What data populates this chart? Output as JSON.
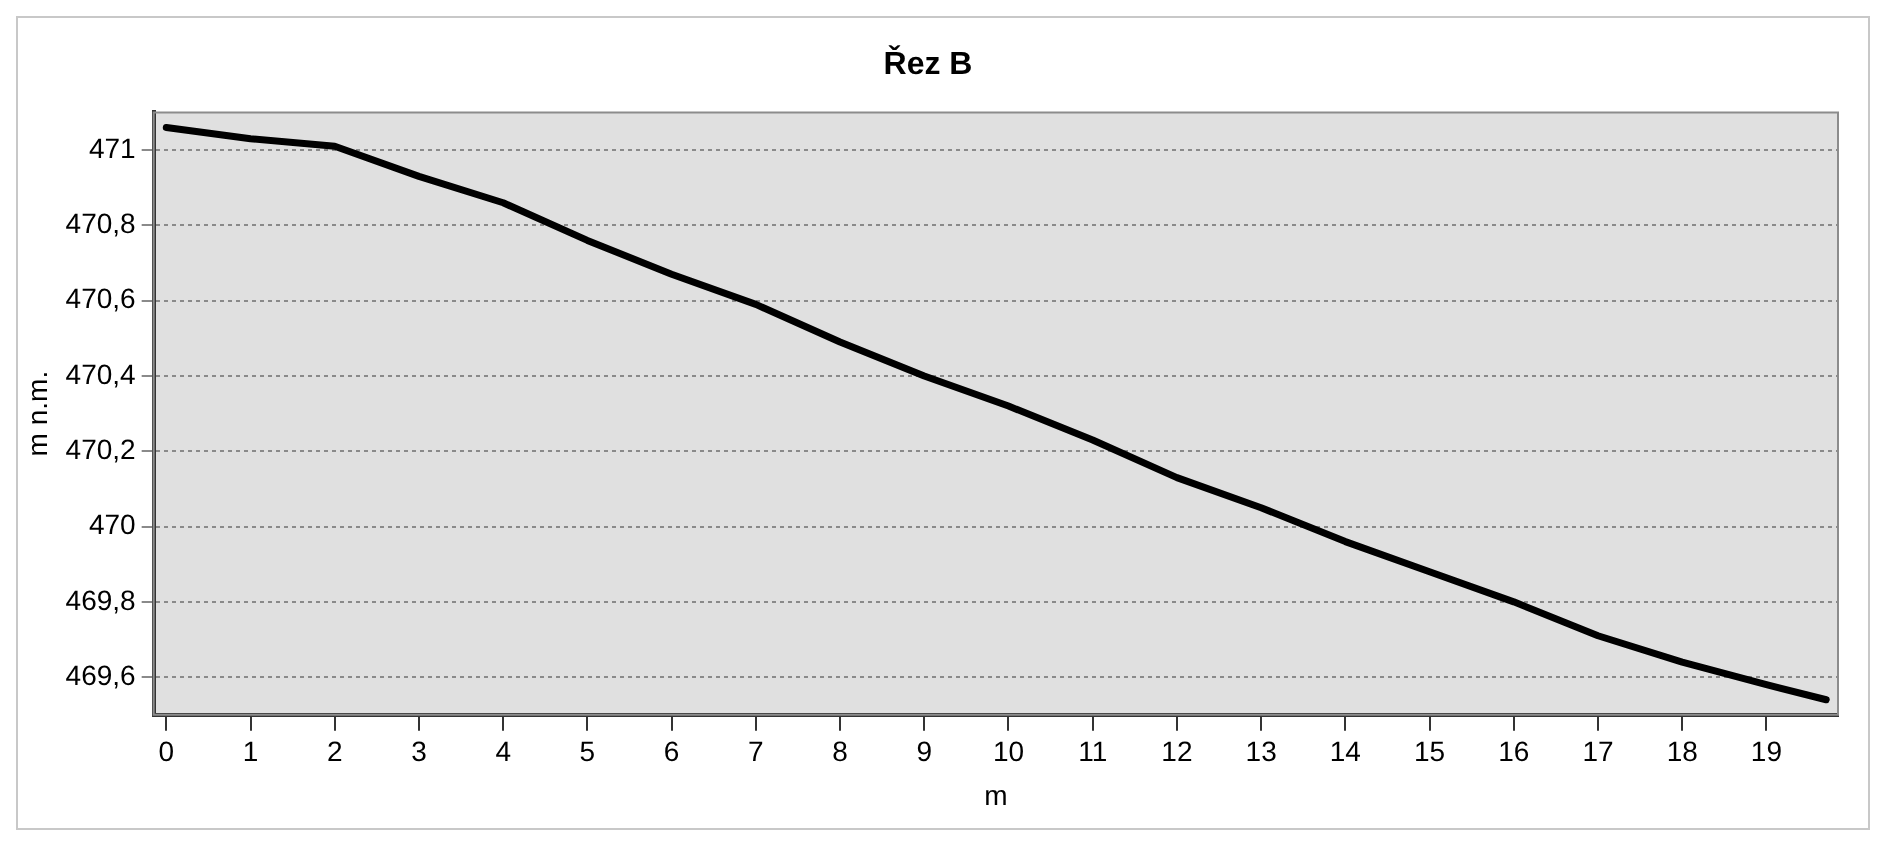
{
  "chart_data": {
    "type": "line",
    "title": "Řez B",
    "xlabel": "m",
    "ylabel": "m n.m.",
    "x": [
      0,
      1,
      2,
      3,
      4,
      5,
      6,
      7,
      8,
      9,
      10,
      11,
      12,
      13,
      14,
      15,
      16,
      17,
      18,
      19,
      19.71
    ],
    "series": [
      {
        "color": "#000000",
        "values": [
          471.06,
          471.03,
          471.01,
          470.93,
          470.86,
          470.76,
          470.67,
          470.59,
          470.49,
          470.4,
          470.32,
          470.23,
          470.13,
          470.05,
          469.96,
          469.88,
          469.8,
          469.71,
          469.64,
          469.58,
          469.54
        ]
      }
    ],
    "xlim": [
      -0.15,
      19.85
    ],
    "xticks": [
      0,
      1,
      2,
      3,
      4,
      5,
      6,
      7,
      8,
      9,
      10,
      11,
      12,
      13,
      14,
      15,
      16,
      17,
      18,
      19
    ],
    "ylim": [
      469.5,
      471.1
    ],
    "yticks": [
      {
        "value": 469.6,
        "label": "469,6"
      },
      {
        "value": 469.8,
        "label": "469,8"
      },
      470,
      {
        "value": 470.2,
        "label": "470,2"
      },
      {
        "value": 470.4,
        "label": "470,4"
      },
      {
        "value": 470.6,
        "label": "470,6"
      },
      {
        "value": 470.8,
        "label": "470,8"
      },
      471
    ],
    "grid": "y",
    "legend": false,
    "marker": "none",
    "line_style": "solid"
  }
}
